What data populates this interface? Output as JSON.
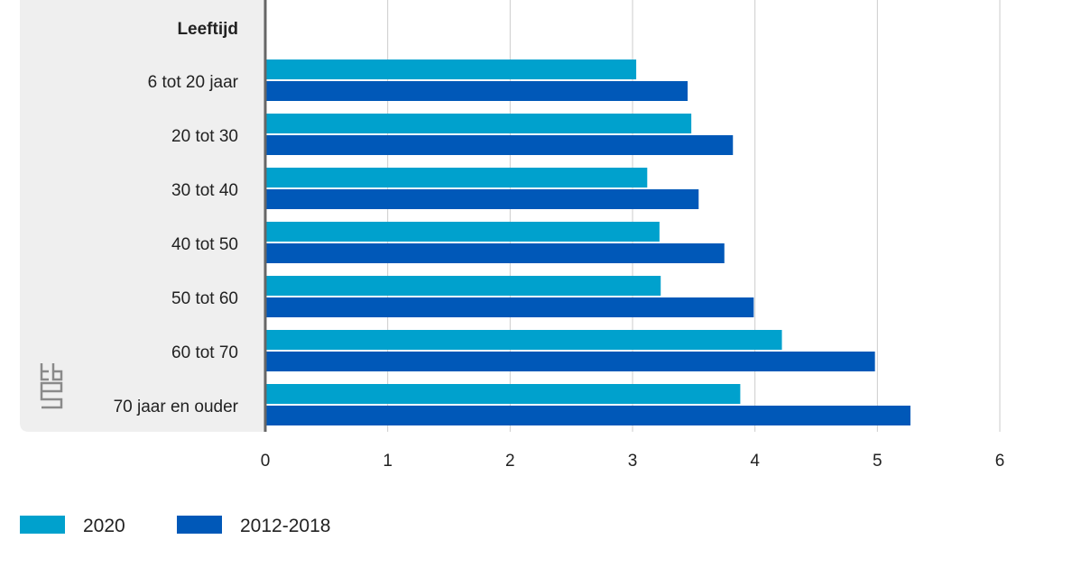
{
  "chart_data": {
    "type": "bar",
    "orientation": "horizontal",
    "category_header": "Leeftijd",
    "categories": [
      "6 tot 20 jaar",
      "20 tot 30",
      "30 tot 40",
      "40 tot 50",
      "50 tot 60",
      "60 tot 70",
      "70 jaar en ouder"
    ],
    "series": [
      {
        "name": "2020",
        "color": "#00a1cd",
        "values": [
          3.03,
          3.48,
          3.12,
          3.22,
          3.23,
          4.22,
          3.88
        ]
      },
      {
        "name": "2012-2018",
        "color": "#0058b8",
        "values": [
          3.45,
          3.82,
          3.54,
          3.75,
          3.99,
          4.98,
          5.27
        ]
      }
    ],
    "xlim": [
      0,
      6
    ],
    "xticks": [
      0,
      1,
      2,
      3,
      4,
      5,
      6
    ],
    "grid": true,
    "legend_position": "bottom-left",
    "logo_icon": "cbs-logo-icon"
  }
}
